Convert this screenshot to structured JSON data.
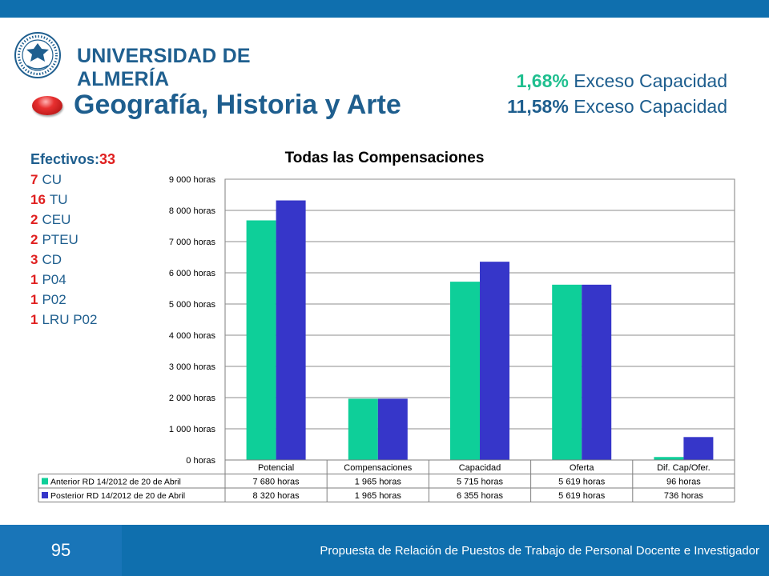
{
  "header": {
    "university_name": "UNIVERSIDAD DE ALMERÍA",
    "seal_text": "UNIVERSITAS ALMERIENSIS"
  },
  "title": "Geografía, Historia y Arte",
  "excess": [
    {
      "pct": "1,68%",
      "label": "Exceso Capacidad"
    },
    {
      "pct": "11,58%",
      "label": "Exceso Capacidad"
    }
  ],
  "staff": {
    "heading_label": "Efectivos:",
    "heading_value": "33",
    "items": [
      {
        "n": "7",
        "label": "CU"
      },
      {
        "n": "16",
        "label": "TU"
      },
      {
        "n": "2",
        "label": "CEU"
      },
      {
        "n": "2",
        "label": "PTEU"
      },
      {
        "n": "3",
        "label": "CD"
      },
      {
        "n": "1",
        "label": "P04"
      },
      {
        "n": "1",
        "label": "P02"
      },
      {
        "n": "1",
        "label": "LRU P02"
      }
    ]
  },
  "chart_data": {
    "type": "bar",
    "title": "Todas las Compensaciones",
    "categories": [
      "Potencial",
      "Compensaciones",
      "Capacidad",
      "Oferta",
      "Dif. Cap/Ofer."
    ],
    "ylim": [
      0,
      9000
    ],
    "ytick_values": [
      0,
      1000,
      2000,
      3000,
      4000,
      5000,
      6000,
      7000,
      8000,
      9000
    ],
    "ytick_labels": [
      "0 horas",
      "1 000 horas",
      "2 000 horas",
      "3 000 horas",
      "4 000 horas",
      "5 000 horas",
      "6 000 horas",
      "7 000 horas",
      "8 000 horas",
      "9 000 horas"
    ],
    "grid": true,
    "legend": "data-table",
    "series": [
      {
        "name": "Anterior RD 14/2012 de 20 de Abril",
        "color": "#0ecf99",
        "values": [
          7680,
          1965,
          5715,
          5619,
          96
        ],
        "labels": [
          "7 680 horas",
          "1 965 horas",
          "5 715 horas",
          "5 619 horas",
          "96 horas"
        ]
      },
      {
        "name": "Posterior RD 14/2012 de 20 de Abril",
        "color": "#3636c9",
        "values": [
          8320,
          1965,
          6355,
          5619,
          736
        ],
        "labels": [
          "8 320 horas",
          "1 965 horas",
          "6 355 horas",
          "5 619 horas",
          "736 horas"
        ]
      }
    ]
  },
  "footer": {
    "page_number": "95",
    "caption": "Propuesta de Relación de Puestos de Trabajo de Personal Docente e Investigador"
  },
  "colors": {
    "brand_blue": "#0f6fae",
    "title_blue": "#1e5e8e",
    "accent_red": "#e02020",
    "accent_green": "#1fbf8f"
  }
}
